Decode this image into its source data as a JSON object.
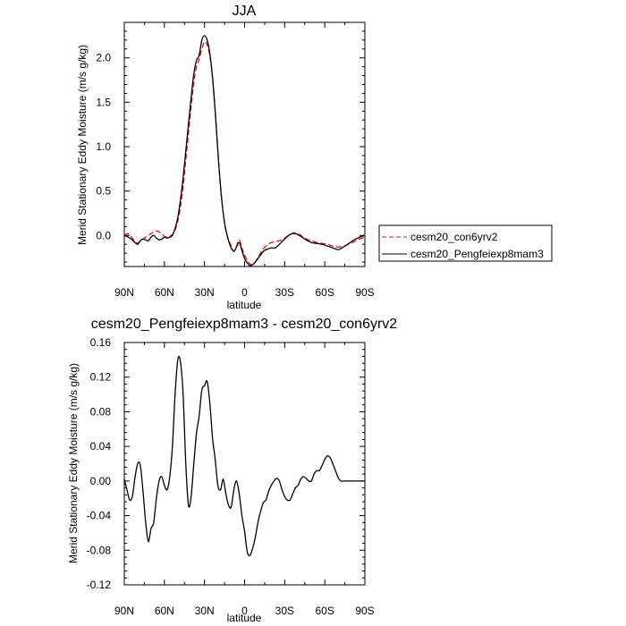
{
  "chart_data": [
    {
      "type": "line",
      "title": "JJA",
      "xlabel": "latitude",
      "ylabel": "Merid Stationary Eddy Moisture (m/s g/kg)",
      "xlim": [
        90,
        -90
      ],
      "ylim": [
        -0.35,
        2.4
      ],
      "x_ticks": [
        90,
        60,
        30,
        0,
        -30,
        -60,
        -90
      ],
      "x_tick_labels": [
        "90N",
        "60N",
        "30N",
        "0",
        "30S",
        "60S",
        "90S"
      ],
      "y_ticks": [
        0.0,
        0.5,
        1.0,
        1.5,
        2.0
      ],
      "y_tick_labels": [
        "0.0",
        "0.5",
        "1.0",
        "1.5",
        "2.0"
      ],
      "grid": false,
      "legend_position": "right",
      "series": [
        {
          "name": "cesm20_con6yrv2",
          "color": "#ff0000",
          "dash": "dashed",
          "x": [
            90,
            87,
            84,
            82,
            80,
            78,
            76,
            74,
            72,
            70,
            68,
            66,
            64,
            62,
            60,
            58,
            56,
            54,
            52,
            50,
            48,
            46,
            44,
            42,
            40,
            38,
            36,
            34,
            32,
            30,
            28,
            26,
            24,
            22,
            20,
            18,
            16,
            14,
            12,
            10,
            8,
            6,
            4,
            2,
            0,
            -2,
            -4,
            -6,
            -8,
            -10,
            -12,
            -14,
            -16,
            -18,
            -20,
            -23,
            -26,
            -30,
            -34,
            -38,
            -42,
            -46,
            -50,
            -54,
            -58,
            -62,
            -66,
            -70,
            -74,
            -78,
            -82,
            -86,
            -90
          ],
          "y": [
            0.0,
            0.02,
            -0.03,
            -0.07,
            -0.09,
            -0.06,
            -0.04,
            -0.02,
            0.0,
            0.02,
            0.04,
            0.05,
            0.04,
            0.02,
            -0.01,
            -0.02,
            -0.01,
            0.01,
            0.06,
            0.16,
            0.32,
            0.55,
            0.85,
            1.15,
            1.45,
            1.72,
            1.9,
            1.98,
            2.1,
            2.18,
            2.15,
            2.02,
            1.78,
            1.4,
            0.95,
            0.55,
            0.25,
            0.06,
            -0.05,
            -0.12,
            -0.18,
            -0.12,
            -0.05,
            -0.14,
            -0.22,
            -0.28,
            -0.32,
            -0.33,
            -0.3,
            -0.25,
            -0.2,
            -0.15,
            -0.12,
            -0.1,
            -0.08,
            -0.07,
            -0.06,
            -0.03,
            0.01,
            0.03,
            0.0,
            -0.04,
            -0.06,
            -0.08,
            -0.09,
            -0.1,
            -0.12,
            -0.13,
            -0.12,
            -0.1,
            -0.07,
            -0.04,
            -0.02
          ]
        },
        {
          "name": "cesm20_Pengfeiexp8mam3",
          "color": "#000000",
          "dash": "solid",
          "x": [
            90,
            87,
            84,
            82,
            80,
            78,
            76,
            74,
            72,
            70,
            68,
            66,
            64,
            62,
            60,
            58,
            56,
            54,
            52,
            50,
            48,
            46,
            44,
            42,
            40,
            38,
            36,
            34,
            32,
            30,
            28,
            26,
            24,
            22,
            20,
            18,
            16,
            14,
            12,
            10,
            8,
            6,
            4,
            2,
            0,
            -2,
            -4,
            -6,
            -8,
            -10,
            -12,
            -14,
            -16,
            -18,
            -20,
            -23,
            -26,
            -30,
            -34,
            -38,
            -42,
            -46,
            -50,
            -54,
            -58,
            -62,
            -66,
            -70,
            -74,
            -78,
            -82,
            -86,
            -90
          ],
          "y": [
            0.0,
            -0.02,
            -0.05,
            -0.08,
            -0.1,
            -0.06,
            -0.04,
            -0.05,
            -0.06,
            -0.02,
            0.0,
            -0.03,
            -0.05,
            -0.04,
            -0.02,
            -0.03,
            -0.02,
            0.0,
            0.08,
            0.2,
            0.4,
            0.65,
            0.95,
            1.25,
            1.55,
            1.82,
            1.97,
            2.03,
            2.2,
            2.25,
            2.2,
            2.05,
            1.78,
            1.4,
            0.95,
            0.55,
            0.25,
            0.06,
            -0.06,
            -0.14,
            -0.18,
            -0.13,
            -0.08,
            -0.17,
            -0.26,
            -0.31,
            -0.34,
            -0.33,
            -0.3,
            -0.26,
            -0.22,
            -0.18,
            -0.16,
            -0.15,
            -0.14,
            -0.14,
            -0.1,
            -0.04,
            0.01,
            0.02,
            -0.01,
            -0.05,
            -0.08,
            -0.09,
            -0.1,
            -0.12,
            -0.14,
            -0.16,
            -0.13,
            -0.09,
            -0.05,
            -0.02,
            0.0
          ]
        }
      ]
    },
    {
      "type": "line",
      "title": "cesm20_Pengfeiexp8mam3 - cesm20_con6yrv2",
      "xlabel": "latitude",
      "ylabel": "Merid Stationary Eddy Moisture (m/s g/kg)",
      "xlim": [
        90,
        -90
      ],
      "ylim": [
        -0.12,
        0.16
      ],
      "x_ticks": [
        90,
        60,
        30,
        0,
        -30,
        -60,
        -90
      ],
      "x_tick_labels": [
        "90N",
        "60N",
        "30N",
        "0",
        "30S",
        "60S",
        "90S"
      ],
      "y_ticks": [
        -0.12,
        -0.08,
        -0.04,
        0.0,
        0.04,
        0.08,
        0.12,
        0.16
      ],
      "y_tick_labels": [
        "-0.12",
        "-0.08",
        "-0.04",
        "0.00",
        "0.04",
        "0.08",
        "0.12",
        "0.16"
      ],
      "grid": false,
      "series": [
        {
          "color": "#000000",
          "dash": "solid",
          "x": [
            90,
            88,
            86,
            84,
            82,
            80,
            78,
            76,
            74,
            72,
            70,
            68,
            66,
            64,
            62,
            60,
            58,
            56,
            54,
            52,
            50,
            48,
            46,
            44,
            42,
            40,
            38,
            36,
            34,
            32,
            30,
            28,
            26,
            24,
            22,
            20,
            18,
            16,
            14,
            12,
            10,
            8,
            6,
            4,
            2,
            0,
            -2,
            -4,
            -6,
            -8,
            -10,
            -12,
            -14,
            -16,
            -18,
            -20,
            -22,
            -24,
            -26,
            -28,
            -30,
            -32,
            -34,
            -36,
            -38,
            -40,
            -42,
            -44,
            -46,
            -48,
            -50,
            -52,
            -54,
            -56,
            -58,
            -60,
            -62,
            -64,
            -66,
            -68,
            -70,
            -72,
            -74,
            -76,
            -78,
            -80,
            -82,
            -84,
            -86,
            -88,
            -90
          ],
          "y": [
            0.002,
            -0.01,
            -0.022,
            -0.018,
            0.004,
            0.02,
            0.018,
            -0.012,
            -0.048,
            -0.07,
            -0.055,
            -0.048,
            -0.02,
            0.0,
            0.005,
            -0.005,
            -0.01,
            0.005,
            0.04,
            0.1,
            0.14,
            0.138,
            0.1,
            0.02,
            -0.028,
            -0.018,
            0.02,
            0.055,
            0.075,
            0.105,
            0.11,
            0.115,
            0.09,
            0.05,
            0.025,
            -0.005,
            -0.01,
            0.002,
            -0.015,
            -0.028,
            -0.03,
            -0.01,
            0.0,
            -0.015,
            -0.04,
            -0.058,
            -0.082,
            -0.086,
            -0.078,
            -0.065,
            -0.048,
            -0.035,
            -0.025,
            -0.022,
            -0.012,
            -0.005,
            0.0,
            0.003,
            0.0,
            -0.01,
            -0.018,
            -0.022,
            -0.022,
            -0.015,
            -0.008,
            -0.005,
            0.002,
            0.005,
            0.003,
            0.0,
            0.0,
            0.008,
            0.012,
            0.012,
            0.018,
            0.025,
            0.029,
            0.027,
            0.02,
            0.012,
            0.004,
            0.0,
            0.0,
            0.0,
            0.0,
            0.0,
            0.0,
            0.0,
            0.0,
            0.0,
            0.0
          ]
        }
      ]
    }
  ]
}
